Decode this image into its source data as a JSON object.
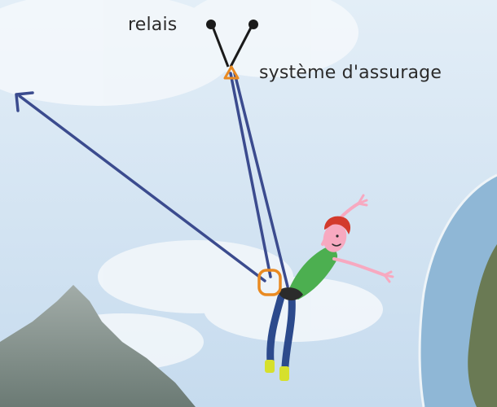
{
  "labels": {
    "anchor": "relais",
    "belay_device": "système d'assurage"
  },
  "colors": {
    "sky_top": "#dce9f4",
    "sky_bottom": "#c7dcee",
    "rope": "#3b4b8e",
    "belay_device": "#e98a22",
    "carabiner": "#e98a22",
    "anchor_line": "#1a1a1a",
    "climber_shirt": "#4caf50",
    "climber_pants": "#2c4a8c",
    "climber_hair": "#d33a2c",
    "climber_skin": "#f7a9c0",
    "climber_shoes": "#d6e02c",
    "mountain": "#7d8a85"
  },
  "icons": {
    "anchor": "anchor-point-icon",
    "belay_device": "belay-triangle-icon",
    "carabiner": "carabiner-icon",
    "climber": "climber-figure",
    "arrow": "force-arrow-icon"
  }
}
